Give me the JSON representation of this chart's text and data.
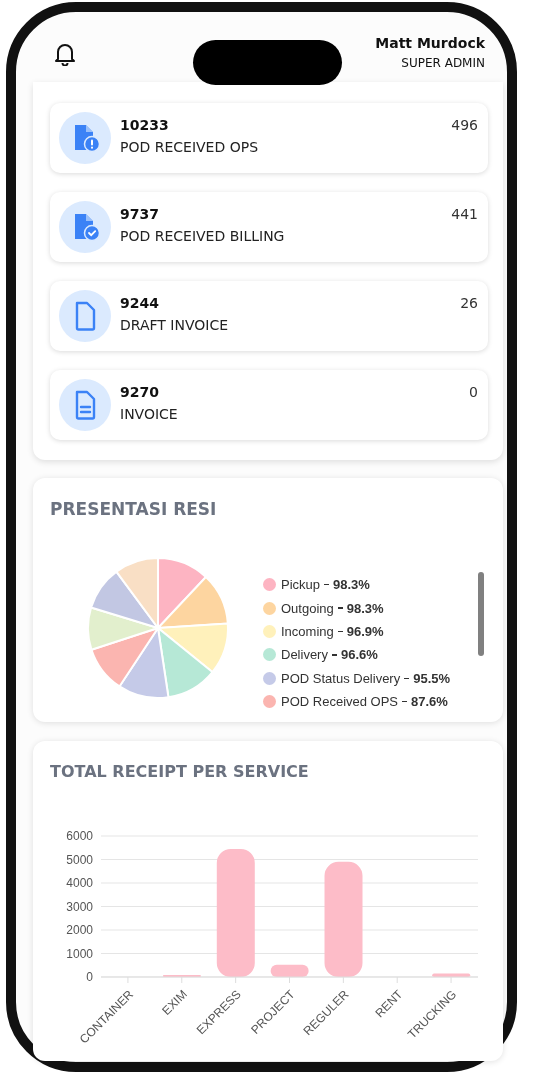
{
  "chart_data": [
    {
      "type": "other",
      "categories": [
        "POD RECEIVED OPS",
        "POD RECEIVED BILLING",
        "DRAFT INVOICE",
        "INVOICE"
      ],
      "values": [
        496,
        441,
        26,
        0
      ],
      "data_labels": true,
      "annotations": [
        "Matt Murdock",
        "SUPER ADMIN",
        "10233",
        "9737",
        "9244",
        "9270"
      ]
    },
    {
      "type": "pie",
      "title": "PRESENTASI RESI",
      "categories": [
        "Pickup",
        "Outgoing",
        "Incoming",
        "Delivery",
        "POD Status Delivery",
        "POD Received OPS",
        null,
        null,
        null
      ],
      "values": [
        98.3,
        98.3,
        96.9,
        96.6,
        95.5,
        87.6,
        80,
        83,
        83
      ],
      "colors": [
        "#fdb4c2",
        "#fdd5a0",
        "#fff1bb",
        "#b6e8d6",
        "#c5cae8",
        "#fbb5b0",
        "#e2efcd",
        "#c2c7e3",
        "#f9dfc5"
      ],
      "value_labels": [
        "98.3%",
        "98.3%",
        "96.9%",
        "96.6%",
        "95.5%",
        "87.6%",
        null,
        null,
        null
      ],
      "legend": "right"
    },
    {
      "type": "bar",
      "title": "TOTAL RECEIPT PER SERVICE",
      "categories": [
        "CONTAINER",
        "EXIM",
        "EXPRESS",
        "PROJECT",
        "REGULER",
        "RENT",
        "TRUCKING"
      ],
      "values": [
        0,
        80,
        5450,
        520,
        4900,
        0,
        150
      ],
      "color": "#fdbcc8",
      "ylim": [
        0,
        6000
      ],
      "yticks": [
        0,
        1000,
        2000,
        3000,
        4000,
        5000,
        6000
      ],
      "grid": "y"
    }
  ]
}
